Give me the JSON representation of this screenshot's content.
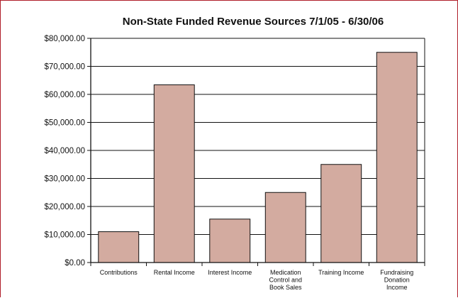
{
  "colors": {
    "frame": "#b01e2a",
    "bar_fill": "#d3aba0",
    "bar_stroke": "#111111",
    "axis": "#111111"
  },
  "chart_data": {
    "type": "bar",
    "title": "Non-State Funded Revenue Sources 7/1/05 - 6/30/06",
    "xlabel": "",
    "ylabel": "",
    "categories": [
      "Contributions",
      "Rental Income",
      "Interest Income",
      "Medication Control and Book Sales",
      "Training Income",
      "Fundraising Donation Income"
    ],
    "category_lines": [
      [
        "Contributions"
      ],
      [
        "Rental Income"
      ],
      [
        "Interest Income"
      ],
      [
        "Medication",
        "Control and",
        "Book Sales"
      ],
      [
        "Training Income"
      ],
      [
        "Fundraising",
        "Donation",
        "Income"
      ]
    ],
    "values": [
      11000,
      63400,
      15500,
      25000,
      35000,
      75000
    ],
    "ylim": [
      0,
      80000
    ],
    "yticks": [
      0,
      10000,
      20000,
      30000,
      40000,
      50000,
      60000,
      70000,
      80000
    ],
    "ytick_labels": [
      "$0.00",
      "$10,000.00",
      "$20,000.00",
      "$30,000.00",
      "$40,000.00",
      "$50,000.00",
      "$60,000.00",
      "$70,000.00",
      "$80,000.00"
    ],
    "grid": true,
    "legend": "none"
  }
}
